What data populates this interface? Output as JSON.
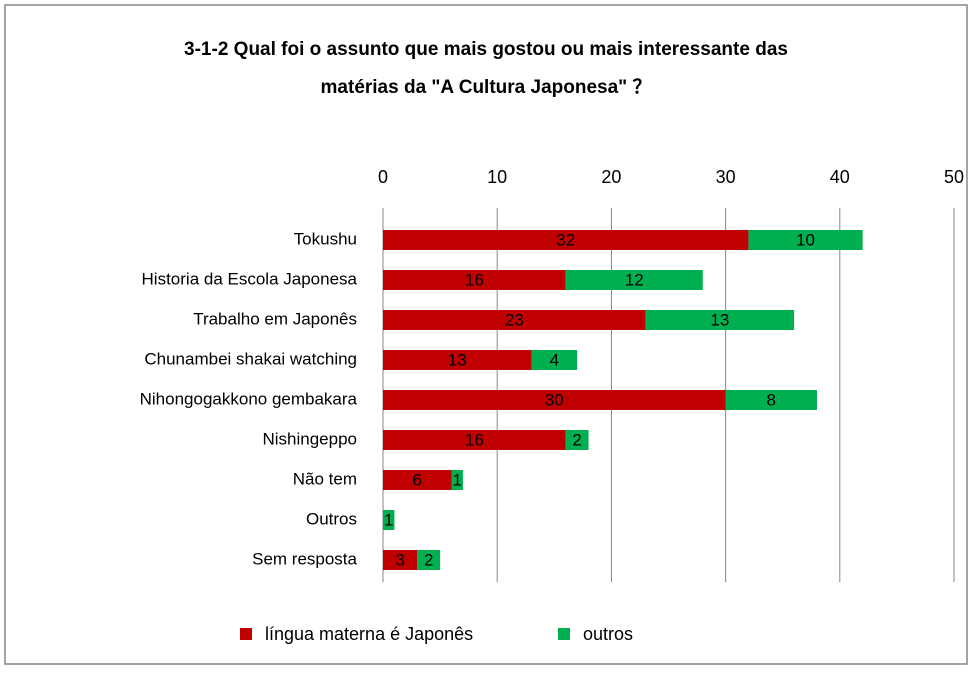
{
  "chart_data": {
    "type": "stacked-barh",
    "title": [
      "3-1-2 Qual foi o assunto que mais gostou ou mais interessante das",
      "matérias da \"A Cultura Japonesa\" ？"
    ],
    "categories": [
      "Tokushu",
      "Historia da Escola Japonesa",
      "Trabalho em Japonês",
      "Chunambei shakai watching",
      "Nihongogakkono gembakara",
      "Nishingeppo",
      "Não tem",
      "Outros",
      "Sem resposta"
    ],
    "series": [
      {
        "name": "língua materna é Japonês",
        "color": "#c00000",
        "values": [
          32,
          16,
          23,
          13,
          30,
          16,
          6,
          null,
          3
        ]
      },
      {
        "name": "outros",
        "color": "#00b050",
        "values": [
          10,
          12,
          13,
          4,
          8,
          2,
          1,
          1,
          2
        ]
      }
    ],
    "xlim": [
      0,
      50
    ],
    "xticks": [
      0,
      10,
      20,
      30,
      40,
      50
    ],
    "grid": true,
    "legend": "bottom"
  }
}
